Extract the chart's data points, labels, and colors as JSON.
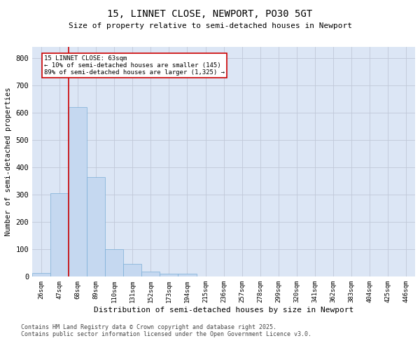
{
  "title": "15, LINNET CLOSE, NEWPORT, PO30 5GT",
  "subtitle": "Size of property relative to semi-detached houses in Newport",
  "xlabel": "Distribution of semi-detached houses by size in Newport",
  "ylabel": "Number of semi-detached properties",
  "categories": [
    "26sqm",
    "47sqm",
    "68sqm",
    "89sqm",
    "110sqm",
    "131sqm",
    "152sqm",
    "173sqm",
    "194sqm",
    "215sqm",
    "236sqm",
    "257sqm",
    "278sqm",
    "299sqm",
    "320sqm",
    "341sqm",
    "362sqm",
    "383sqm",
    "404sqm",
    "425sqm",
    "446sqm"
  ],
  "values": [
    15,
    305,
    620,
    365,
    100,
    48,
    20,
    10,
    10,
    2,
    0,
    0,
    0,
    0,
    0,
    0,
    0,
    0,
    0,
    0,
    0
  ],
  "bar_color": "#c5d8f0",
  "bar_edge_color": "#7aaed6",
  "grid_color": "#c0c8d8",
  "background_color": "#dce6f5",
  "marker_label": "15 LINNET CLOSE: 63sqm\n← 10% of semi-detached houses are smaller (145)\n89% of semi-detached houses are larger (1,325) →",
  "annotation_box_edge": "#cc0000",
  "vline_color": "#cc0000",
  "footer_line1": "Contains HM Land Registry data © Crown copyright and database right 2025.",
  "footer_line2": "Contains public sector information licensed under the Open Government Licence v3.0.",
  "ylim": [
    0,
    840
  ],
  "yticks": [
    0,
    100,
    200,
    300,
    400,
    500,
    600,
    700,
    800
  ],
  "vline_x": 1.5
}
